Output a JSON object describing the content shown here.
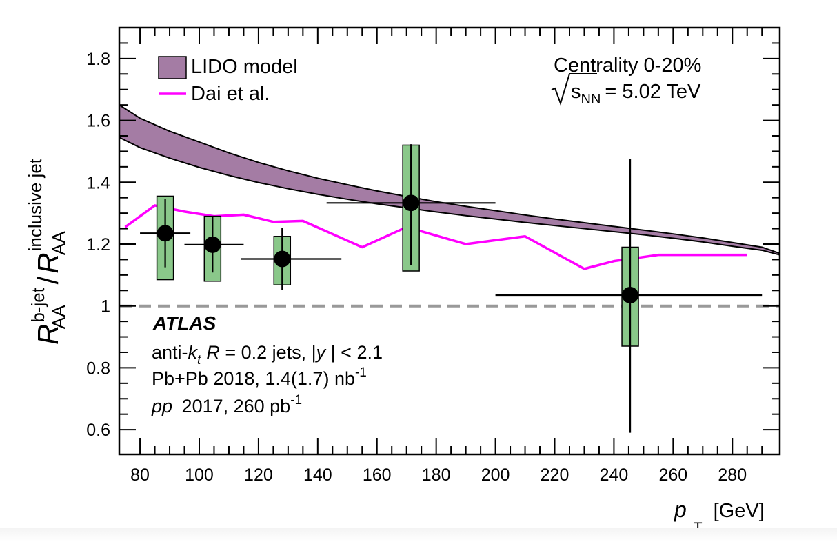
{
  "chart_data": {
    "type": "scatter",
    "xlabel": {
      "main": "p",
      "sub": "T",
      "unit": "[GeV]"
    },
    "ylabel": {
      "r1": "R",
      "r1_sup": "b-jet",
      "r1_sub": "AA",
      "slash": "/",
      "r2": "R",
      "r2_sup": "inclusive jet",
      "r2_sub": "AA"
    },
    "xlim": [
      73,
      296
    ],
    "ylim": [
      0.52,
      1.9
    ],
    "x_ticks": [
      80,
      100,
      120,
      140,
      160,
      180,
      200,
      220,
      240,
      260,
      280
    ],
    "x_tick_labels": [
      "80",
      "100",
      "120",
      "140",
      "160",
      "180",
      "200",
      "220",
      "240",
      "260",
      "280"
    ],
    "y_ticks": [
      0.6,
      0.8,
      1.0,
      1.2,
      1.4,
      1.6,
      1.8
    ],
    "y_tick_labels": [
      "0.6",
      "0.8",
      "1",
      "1.2",
      "1.4",
      "1.6",
      "1.8"
    ],
    "grid": false,
    "legend_position": "top-left",
    "legend": [
      {
        "label": "LIDO model",
        "kind": "band",
        "color": "#a47ca4"
      },
      {
        "label": "Dai et al.",
        "kind": "line",
        "color": "#ff00ff"
      }
    ],
    "reference_line": {
      "y": 1.0,
      "style": "dashed",
      "color": "#999999"
    },
    "series": [
      {
        "name": "LIDO model",
        "kind": "band",
        "color": "#a47ca4",
        "x": [
          73,
          80,
          90,
          100,
          110,
          120,
          130,
          140,
          150,
          160,
          170,
          180,
          190,
          200,
          210,
          220,
          230,
          240,
          250,
          260,
          270,
          280,
          290,
          296
        ],
        "upper": [
          1.65,
          1.607,
          1.565,
          1.53,
          1.495,
          1.464,
          1.437,
          1.413,
          1.392,
          1.372,
          1.354,
          1.337,
          1.322,
          1.308,
          1.294,
          1.281,
          1.269,
          1.257,
          1.245,
          1.233,
          1.22,
          1.205,
          1.19,
          1.17
        ],
        "lower": [
          1.545,
          1.512,
          1.478,
          1.448,
          1.422,
          1.399,
          1.379,
          1.361,
          1.345,
          1.33,
          1.317,
          1.304,
          1.292,
          1.281,
          1.27,
          1.26,
          1.25,
          1.24,
          1.23,
          1.219,
          1.207,
          1.193,
          1.18,
          1.165
        ]
      },
      {
        "name": "Dai et al.",
        "kind": "line",
        "color": "#ff00ff",
        "x": [
          75,
          85,
          95,
          105,
          115,
          125,
          135,
          155,
          170,
          190,
          210,
          230,
          240,
          255,
          270,
          285
        ],
        "y": [
          1.255,
          1.325,
          1.305,
          1.29,
          1.295,
          1.272,
          1.275,
          1.19,
          1.255,
          1.2,
          1.225,
          1.12,
          1.145,
          1.165,
          1.165,
          1.165
        ]
      },
      {
        "kind": "points",
        "x": [
          88.5,
          104.5,
          128,
          171.5,
          245.5
        ],
        "y": [
          1.235,
          1.198,
          1.152,
          1.333,
          1.035
        ],
        "xerr_lo": [
          8.5,
          9.5,
          14,
          28.5,
          45.5
        ],
        "xerr_hi": [
          8.5,
          10.5,
          20,
          28.5,
          44.5
        ],
        "stat_lo": [
          0.11,
          0.09,
          0.1,
          0.2,
          0.445
        ],
        "stat_hi": [
          0.11,
          0.09,
          0.1,
          0.19,
          0.44
        ],
        "sys_lo": [
          1.085,
          1.08,
          1.068,
          1.113,
          0.87
        ],
        "sys_hi": [
          1.355,
          1.29,
          1.225,
          1.52,
          1.19
        ],
        "sys_color": "#8ac88a"
      }
    ]
  },
  "annotations": {
    "centrality": "Centrality 0-20%",
    "energy_s": "s",
    "energy_sub": "NN",
    "energy_value": "= 5.02 TeV",
    "experiment": "ATLAS",
    "line1_a": "anti-",
    "line1_k": "k",
    "line1_t": "t",
    "line1_R": "R",
    "line1_b": " = 0.2 jets, |",
    "line1_y": "y",
    "line1_c": " | < 2.1",
    "line2": "Pb+Pb 2018, 1.4(1.7) nb",
    "line2_sup": "-1",
    "line3_pp": "pp",
    "line3": " 2017, 260 pb",
    "line3_sup": "-1"
  }
}
